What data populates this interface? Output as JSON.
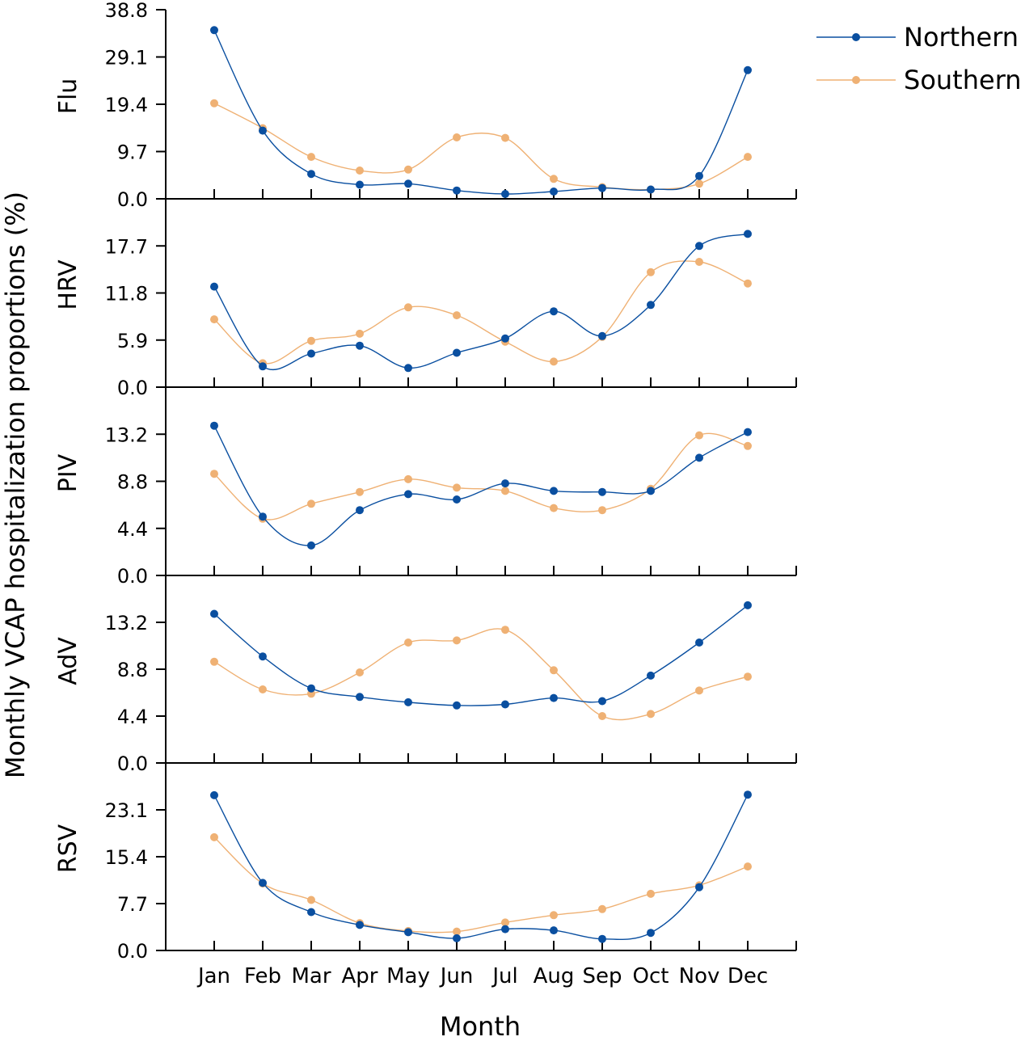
{
  "chart_data": {
    "type": "line",
    "layout": "stacked-panels",
    "xlabel": "Month",
    "ylabel": "Monthly VCAP hospitalization proportions (%)",
    "categories": [
      "Jan",
      "Feb",
      "Mar",
      "Apr",
      "May",
      "Jun",
      "Jul",
      "Aug",
      "Sep",
      "Oct",
      "Nov",
      "Dec"
    ],
    "legend": [
      {
        "name": "Northern",
        "color": "#0a4fa0"
      },
      {
        "name": "Southern",
        "color": "#efb174"
      }
    ],
    "legend_position": "top-right",
    "panels": [
      {
        "name": "Flu",
        "ylim": [
          0,
          38.8
        ],
        "yticks": [
          "0.0",
          "9.7",
          "19.4",
          "29.1",
          "38.8"
        ],
        "series": [
          {
            "name": "Northern",
            "values": [
              34.6,
              14.0,
              5.1,
              2.9,
              3.1,
              1.7,
              1.0,
              1.5,
              2.2,
              1.9,
              4.7,
              26.4
            ]
          },
          {
            "name": "Southern",
            "values": [
              19.6,
              14.5,
              8.6,
              5.8,
              6.0,
              12.6,
              12.5,
              4.1,
              2.4,
              1.9,
              3.1,
              8.6
            ]
          }
        ]
      },
      {
        "name": "HRV",
        "ylim": [
          0,
          23.6
        ],
        "yticks": [
          "0.0",
          "5.9",
          "11.8",
          "17.7"
        ],
        "series": [
          {
            "name": "Northern",
            "values": [
              12.6,
              2.6,
              4.2,
              5.2,
              2.4,
              4.3,
              6.1,
              9.5,
              6.4,
              10.3,
              17.7,
              19.2
            ]
          },
          {
            "name": "Southern",
            "values": [
              8.5,
              3.0,
              5.8,
              6.7,
              10.0,
              9.0,
              5.7,
              3.2,
              6.3,
              14.4,
              15.7,
              13.0
            ]
          }
        ]
      },
      {
        "name": "PIV",
        "ylim": [
          0,
          17.6
        ],
        "yticks": [
          "0.0",
          "4.4",
          "8.8",
          "13.2"
        ],
        "series": [
          {
            "name": "Northern",
            "values": [
              14.0,
              5.5,
              2.8,
              6.1,
              7.6,
              7.1,
              8.6,
              7.9,
              7.8,
              7.9,
              11.0,
              13.4
            ]
          },
          {
            "name": "Southern",
            "values": [
              9.5,
              5.3,
              6.7,
              7.8,
              9.0,
              8.2,
              7.9,
              6.3,
              6.1,
              8.1,
              13.1,
              12.1
            ]
          }
        ]
      },
      {
        "name": "AdV",
        "ylim": [
          0,
          17.6
        ],
        "yticks": [
          "0.0",
          "4.4",
          "8.8",
          "13.2"
        ],
        "series": [
          {
            "name": "Northern",
            "values": [
              14.0,
              10.0,
              7.0,
              6.2,
              5.7,
              5.4,
              5.5,
              6.1,
              5.8,
              8.2,
              11.3,
              14.8
            ]
          },
          {
            "name": "Southern",
            "values": [
              9.5,
              6.9,
              6.5,
              8.5,
              11.3,
              11.5,
              12.5,
              8.7,
              4.4,
              4.6,
              6.8,
              8.1
            ]
          }
        ]
      },
      {
        "name": "RSV",
        "ylim": [
          0,
          30.8
        ],
        "yticks": [
          "0.0",
          "7.7",
          "15.4",
          "23.1"
        ],
        "series": [
          {
            "name": "Northern",
            "values": [
              25.5,
              11.1,
              6.3,
              4.2,
              3.0,
              2.0,
              3.5,
              3.3,
              1.9,
              2.9,
              10.4,
              25.6
            ]
          },
          {
            "name": "Southern",
            "values": [
              18.6,
              11.0,
              8.3,
              4.5,
              3.2,
              3.1,
              4.6,
              5.8,
              6.8,
              9.3,
              10.7,
              13.8
            ]
          }
        ]
      }
    ]
  }
}
